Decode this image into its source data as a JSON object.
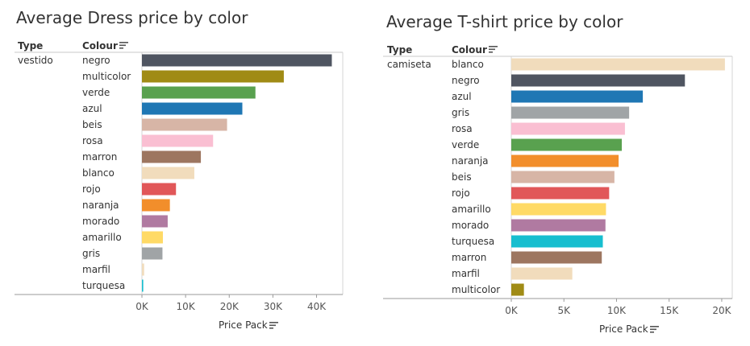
{
  "chart_data": [
    {
      "type": "bar",
      "title": "Average Dress price by color",
      "type_header": "Type",
      "colour_header": "Colour",
      "type_value": "vestido",
      "xlabel": "Price Pack",
      "xlim": [
        0,
        46000
      ],
      "ticks": [
        0,
        10000,
        20000,
        30000,
        40000
      ],
      "tick_labels": [
        "0K",
        "10K",
        "20K",
        "30K",
        "40K"
      ],
      "categories": [
        "negro",
        "multicolor",
        "verde",
        "azul",
        "beis",
        "rosa",
        "marron",
        "blanco",
        "rojo",
        "naranja",
        "morado",
        "amarillo",
        "gris",
        "marfil",
        "turquesa"
      ],
      "values": [
        43500,
        32500,
        26000,
        23000,
        19500,
        16300,
        13500,
        12000,
        7800,
        6400,
        5900,
        4800,
        4700,
        500,
        300
      ],
      "colors": [
        "#4f5561",
        "#a08b15",
        "#59a14f",
        "#1f77b4",
        "#d7b5a6",
        "#fabfd2",
        "#9d7660",
        "#f1dcbc",
        "#e15759",
        "#f28e2b",
        "#b07aa1",
        "#ffda66",
        "#a0a4a6",
        "#f1dcbc",
        "#17becf"
      ]
    },
    {
      "type": "bar",
      "title": "Average T-shirt price by color",
      "type_header": "Type",
      "colour_header": "Colour",
      "type_value": "camiseta",
      "xlabel": "Price Pack",
      "xlim": [
        0,
        21000
      ],
      "ticks": [
        0,
        5000,
        10000,
        15000,
        20000
      ],
      "tick_labels": [
        "0K",
        "5K",
        "10K",
        "15K",
        "20K"
      ],
      "categories": [
        "blanco",
        "negro",
        "azul",
        "gris",
        "rosa",
        "verde",
        "naranja",
        "beis",
        "rojo",
        "amarillo",
        "morado",
        "turquesa",
        "marron",
        "marfil",
        "multicolor"
      ],
      "values": [
        20300,
        16500,
        12500,
        11200,
        10800,
        10500,
        10200,
        9800,
        9300,
        9000,
        8950,
        8700,
        8600,
        5800,
        1200
      ],
      "colors": [
        "#f1dcbc",
        "#4f5561",
        "#1f77b4",
        "#a0a4a6",
        "#fabfd2",
        "#59a14f",
        "#f28e2b",
        "#d7b5a6",
        "#e15759",
        "#ffda66",
        "#b07aa1",
        "#17becf",
        "#9d7660",
        "#f1dcbc",
        "#a08b15"
      ]
    }
  ]
}
